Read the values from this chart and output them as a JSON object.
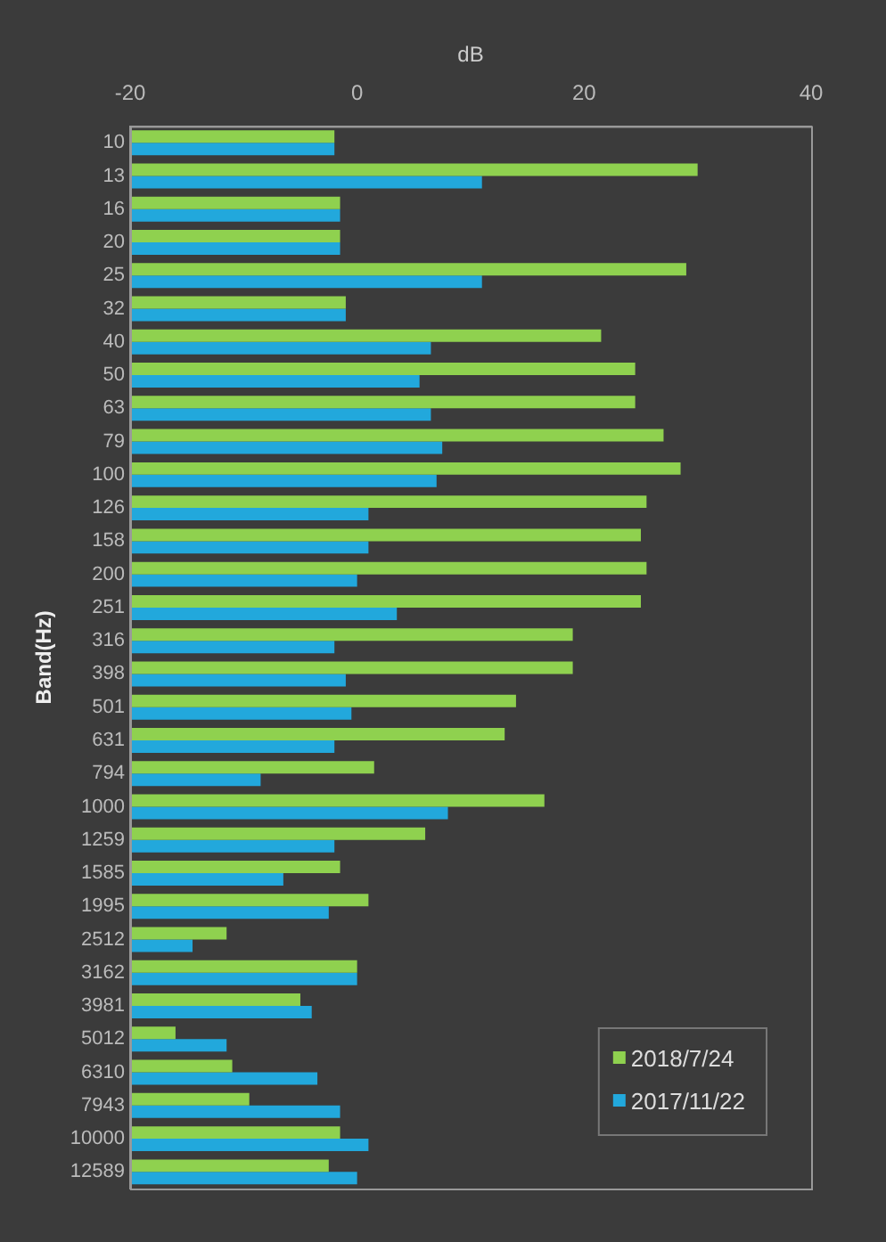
{
  "chart_data": {
    "type": "bar",
    "orientation": "horizontal",
    "xlabel": "dB",
    "ylabel": "Band(Hz)",
    "categories": [
      "10",
      "13",
      "16",
      "20",
      "25",
      "32",
      "40",
      "50",
      "63",
      "79",
      "100",
      "126",
      "158",
      "200",
      "251",
      "316",
      "398",
      "501",
      "631",
      "794",
      "1000",
      "1259",
      "1585",
      "1995",
      "2512",
      "3162",
      "3981",
      "5012",
      "6310",
      "7943",
      "10000",
      "12589"
    ],
    "series": [
      {
        "name": "2018/7/24",
        "color": "#8fd14f",
        "base": [
          -20,
          -20,
          -20,
          -20,
          -20,
          -20,
          -20,
          -20,
          -20,
          -20,
          -20,
          -20,
          -20,
          -20,
          -20,
          -20,
          -20,
          -20,
          -20,
          -20,
          -20,
          -20,
          -20,
          -20,
          -20,
          -20,
          -20,
          -20,
          -20,
          -20,
          -20,
          -20
        ],
        "values": [
          18,
          50,
          18.5,
          18.5,
          49,
          19,
          41.5,
          44.5,
          44.5,
          47,
          48.5,
          45.5,
          45,
          45.5,
          45,
          39,
          39,
          34,
          33,
          21.5,
          36.5,
          26,
          18.5,
          21,
          8.5,
          20,
          15,
          4,
          9,
          10.5,
          18.5,
          17.5
        ]
      },
      {
        "name": "2017/11/22",
        "color": "#22a8dc",
        "base": [
          -20,
          -20,
          -20,
          -20,
          -20,
          -20,
          -20,
          -20,
          -20,
          -20,
          -20,
          -20,
          -20,
          -20,
          -20,
          -20,
          -20,
          -20,
          -20,
          -20,
          -20,
          -20,
          -20,
          -20,
          -20,
          -20,
          -20,
          -20,
          -20,
          -20,
          -20,
          -20
        ],
        "values": [
          18,
          31,
          18.5,
          18.5,
          31,
          19,
          26.5,
          25.5,
          26.5,
          27.5,
          27,
          21,
          21,
          20,
          23.5,
          18,
          19,
          19.5,
          18,
          11.5,
          28,
          18,
          13.5,
          17.5,
          5.5,
          20,
          16,
          8.5,
          16.5,
          18.5,
          21,
          20
        ]
      }
    ],
    "xlim": [
      -20,
      40
    ],
    "xticks": [
      -20,
      0,
      20,
      40
    ],
    "grid": false,
    "legend": "bottom right"
  }
}
